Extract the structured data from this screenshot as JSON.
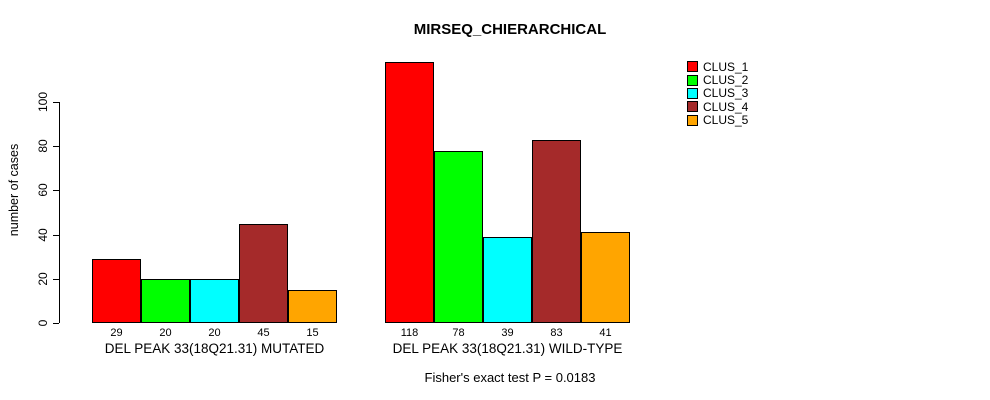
{
  "title": "MIRSEQ_CHIERARCHICAL",
  "footer": "Fisher's exact test P = 0.0183",
  "chart_data": {
    "type": "bar",
    "title": "MIRSEQ_CHIERARCHICAL",
    "xlabel": "",
    "ylabel": "number of cases",
    "ylim": [
      0,
      120
    ],
    "y_ticks": [
      0,
      20,
      40,
      60,
      80,
      100
    ],
    "grid": false,
    "legend_position": "top-right",
    "bar_value_labels_shown": true,
    "categories": [
      "DEL PEAK 33(18Q21.31) MUTATED",
      "DEL PEAK 33(18Q21.31) WILD-TYPE"
    ],
    "series": [
      {
        "name": "CLUS_1",
        "color": "#FF0000",
        "values": [
          29,
          118
        ]
      },
      {
        "name": "CLUS_2",
        "color": "#00FF00",
        "values": [
          20,
          78
        ]
      },
      {
        "name": "CLUS_3",
        "color": "#00FFFF",
        "values": [
          20,
          39
        ]
      },
      {
        "name": "CLUS_4",
        "color": "#A52A2A",
        "values": [
          45,
          83
        ]
      },
      {
        "name": "CLUS_5",
        "color": "#FFA500",
        "values": [
          15,
          41
        ]
      }
    ],
    "annotation": "Fisher's exact test P = 0.0183"
  }
}
